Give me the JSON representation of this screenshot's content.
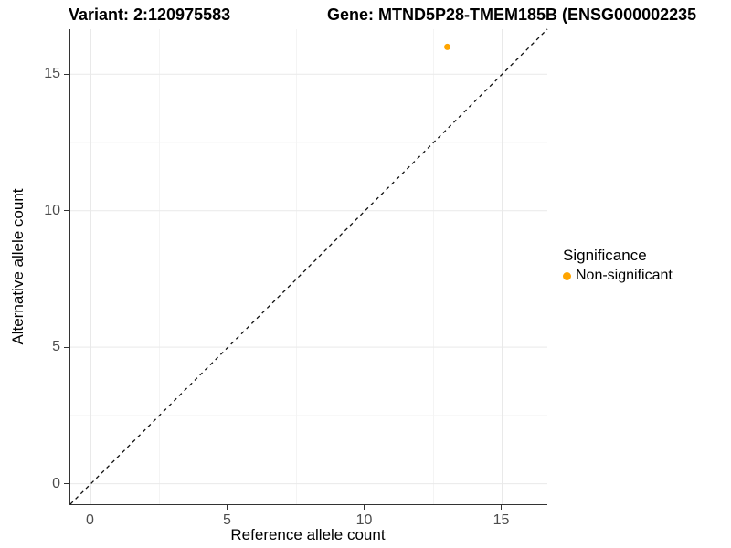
{
  "titles": {
    "variant": "Variant: 2:120975583",
    "gene": "Gene: MTND5P28-TMEM185B (ENSG000002235"
  },
  "legend": {
    "title": "Significance",
    "items": [
      {
        "label": "Non-significant",
        "color": "#FFA500"
      }
    ]
  },
  "axes": {
    "x_label": "Reference allele count",
    "y_label": "Alternative allele count"
  },
  "colors": {
    "point": "#FFA500",
    "axis_line": "#333333",
    "tick_text": "#4d4d4d",
    "grid_major": "#e9e9e9",
    "grid_minor": "#f4f4f4",
    "reference_line": "#111111"
  },
  "chart_data": {
    "type": "scatter",
    "title": "Variant: 2:120975583  |  Gene: MTND5P28-TMEM185B (ENSG000002235",
    "xlabel": "Reference allele count",
    "ylabel": "Alternative allele count",
    "xlim": [
      -0.75,
      16.65
    ],
    "ylim": [
      -0.75,
      16.65
    ],
    "x_ticks": [
      0,
      5,
      10,
      15
    ],
    "y_ticks": [
      0,
      5,
      10,
      15
    ],
    "x_minor_ticks": [
      2.5,
      7.5,
      12.5
    ],
    "y_minor_ticks": [
      2.5,
      7.5,
      12.5
    ],
    "grid": true,
    "legend_position": "right",
    "series": [
      {
        "name": "Non-significant",
        "color": "#FFA500",
        "points": [
          {
            "x": 13,
            "y": 16
          }
        ]
      }
    ],
    "reference_line": {
      "slope": 1,
      "intercept": 0,
      "style": "dashed",
      "color": "#111111"
    }
  }
}
